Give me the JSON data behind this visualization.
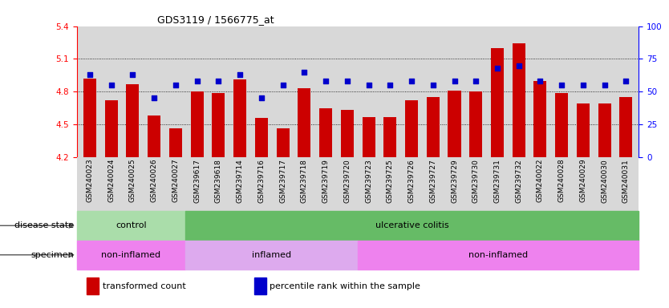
{
  "title": "GDS3119 / 1566775_at",
  "samples": [
    "GSM240023",
    "GSM240024",
    "GSM240025",
    "GSM240026",
    "GSM240027",
    "GSM239617",
    "GSM239618",
    "GSM239714",
    "GSM239716",
    "GSM239717",
    "GSM239718",
    "GSM239719",
    "GSM239720",
    "GSM239723",
    "GSM239725",
    "GSM239726",
    "GSM239727",
    "GSM239729",
    "GSM239730",
    "GSM239731",
    "GSM239732",
    "GSM240022",
    "GSM240028",
    "GSM240029",
    "GSM240030",
    "GSM240031"
  ],
  "bar_values": [
    4.92,
    4.72,
    4.87,
    4.58,
    4.46,
    4.8,
    4.79,
    4.91,
    4.56,
    4.46,
    4.83,
    4.65,
    4.63,
    4.57,
    4.57,
    4.72,
    4.75,
    4.81,
    4.8,
    5.2,
    5.24,
    4.9,
    4.79,
    4.69,
    4.69,
    4.75
  ],
  "dot_values": [
    63,
    55,
    63,
    45,
    55,
    58,
    58,
    63,
    45,
    55,
    65,
    58,
    58,
    55,
    55,
    58,
    55,
    58,
    58,
    68,
    70,
    58,
    55,
    55,
    55,
    58
  ],
  "ylim_left": [
    4.2,
    5.4
  ],
  "ylim_right": [
    0,
    100
  ],
  "yticks_left": [
    4.2,
    4.5,
    4.8,
    5.1,
    5.4
  ],
  "yticks_right": [
    0,
    25,
    50,
    75,
    100
  ],
  "bar_color": "#cc0000",
  "dot_color": "#0000cc",
  "bg_color": "#d8d8d8",
  "disease_state_groups": [
    {
      "label": "control",
      "start": 0,
      "end": 5,
      "color": "#aaddaa"
    },
    {
      "label": "ulcerative colitis",
      "start": 5,
      "end": 26,
      "color": "#66bb66"
    }
  ],
  "specimen_groups": [
    {
      "label": "non-inflamed",
      "start": 0,
      "end": 5,
      "color": "#ee82ee"
    },
    {
      "label": "inflamed",
      "start": 5,
      "end": 13,
      "color": "#ddaaee"
    },
    {
      "label": "non-inflamed",
      "start": 13,
      "end": 26,
      "color": "#ee82ee"
    }
  ],
  "legend": [
    {
      "label": "transformed count",
      "color": "#cc0000"
    },
    {
      "label": "percentile rank within the sample",
      "color": "#0000cc"
    }
  ],
  "grid_yticks": [
    4.5,
    4.8,
    5.1
  ]
}
